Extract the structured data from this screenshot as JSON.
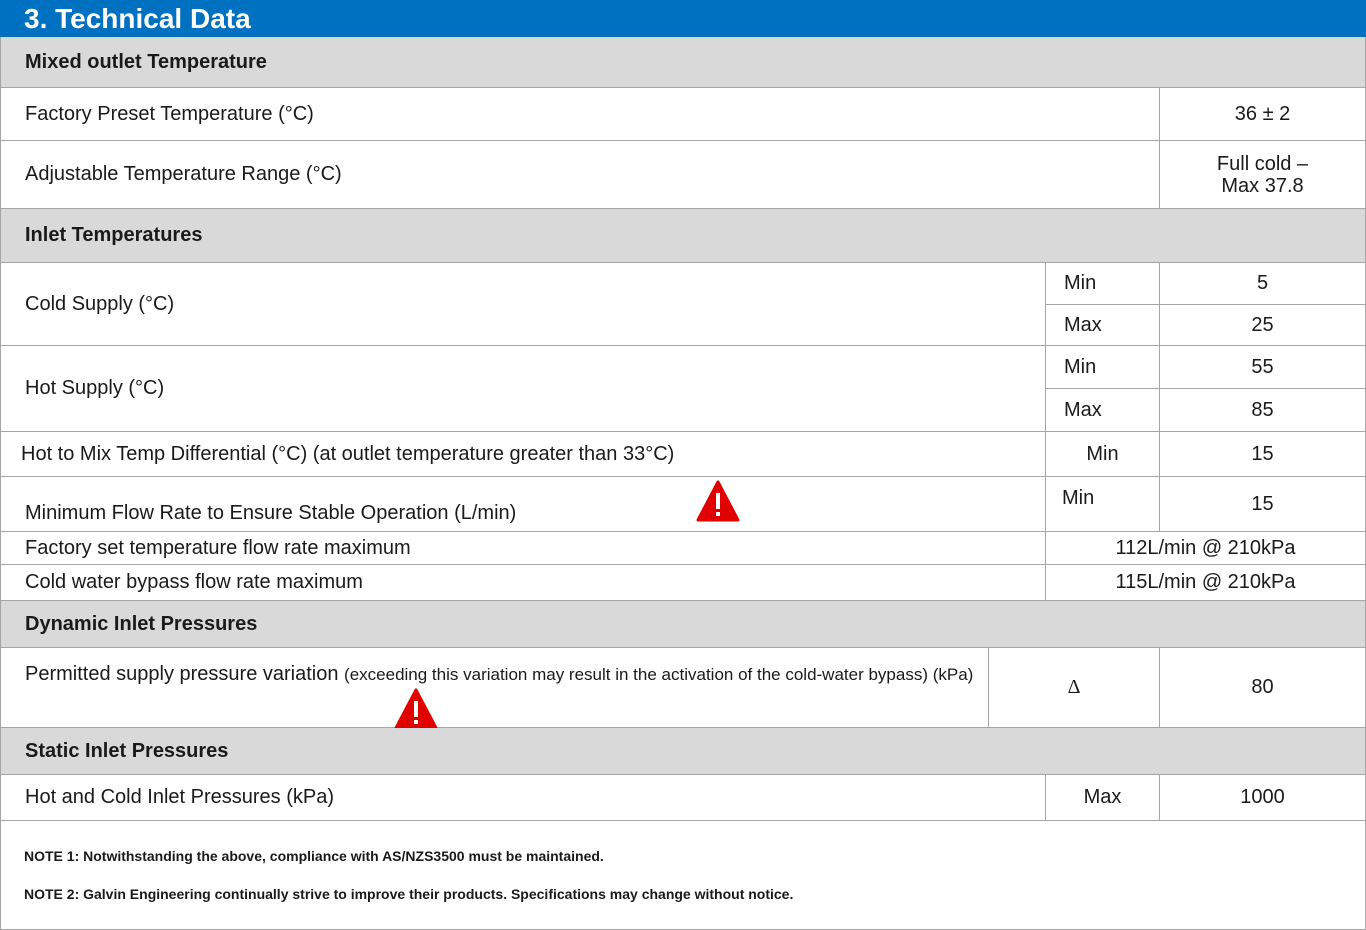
{
  "title": "3.  Technical Data",
  "sections": [
    {
      "heading": "Mixed outlet Temperature",
      "rows": [
        {
          "label": "Factory Preset Temperature (°C)",
          "value": "36 ± 2"
        },
        {
          "label": "Adjustable Temperature Range (°C)",
          "value": [
            "Full cold –",
            "Max 37.8"
          ]
        }
      ]
    },
    {
      "heading": "Inlet Temperatures",
      "rows": [
        {
          "label": "Cold Supply (°C)",
          "limits": [
            {
              "kind": "Min",
              "value": 5
            },
            {
              "kind": "Max",
              "value": 25
            }
          ]
        },
        {
          "label": "Hot Supply (°C)",
          "limits": [
            {
              "kind": "Min",
              "value": 55
            },
            {
              "kind": "Max",
              "value": 85
            }
          ]
        },
        {
          "label": "Hot to Mix Temp Differential (°C) (at outlet temperature greater than 33°C)",
          "limits": [
            {
              "kind": "Min",
              "value": 15
            }
          ]
        },
        {
          "label": "Minimum Flow Rate to Ensure Stable Operation (L/min)",
          "limits": [
            {
              "kind": "Min",
              "value": 15
            }
          ]
        },
        {
          "label": "Factory set temperature flow rate maximum",
          "value": "112L/min @ 210kPa"
        },
        {
          "label": "Cold water bypass flow rate maximum",
          "value": "115L/min @ 210kPa"
        }
      ]
    },
    {
      "heading": "Dynamic Inlet Pressures",
      "rows": [
        {
          "label": "Permitted supply pressure variation",
          "label_note": "(exceeding this variation may result in the activation of the cold-water bypass) (kPa)",
          "limits": [
            {
              "kind": "Δ",
              "value": 80
            }
          ]
        }
      ]
    },
    {
      "heading": "Static Inlet Pressures",
      "rows": [
        {
          "label": "Hot and Cold Inlet Pressures (kPa)",
          "limits": [
            {
              "kind": "Max",
              "value": 1000
            }
          ]
        }
      ]
    }
  ],
  "notes": [
    "NOTE 1: Notwithstanding the above, compliance with AS/NZS3500 must be maintained.",
    "NOTE 2: Galvin Engineering continually strive to improve their products. Specifications may change without notice."
  ]
}
